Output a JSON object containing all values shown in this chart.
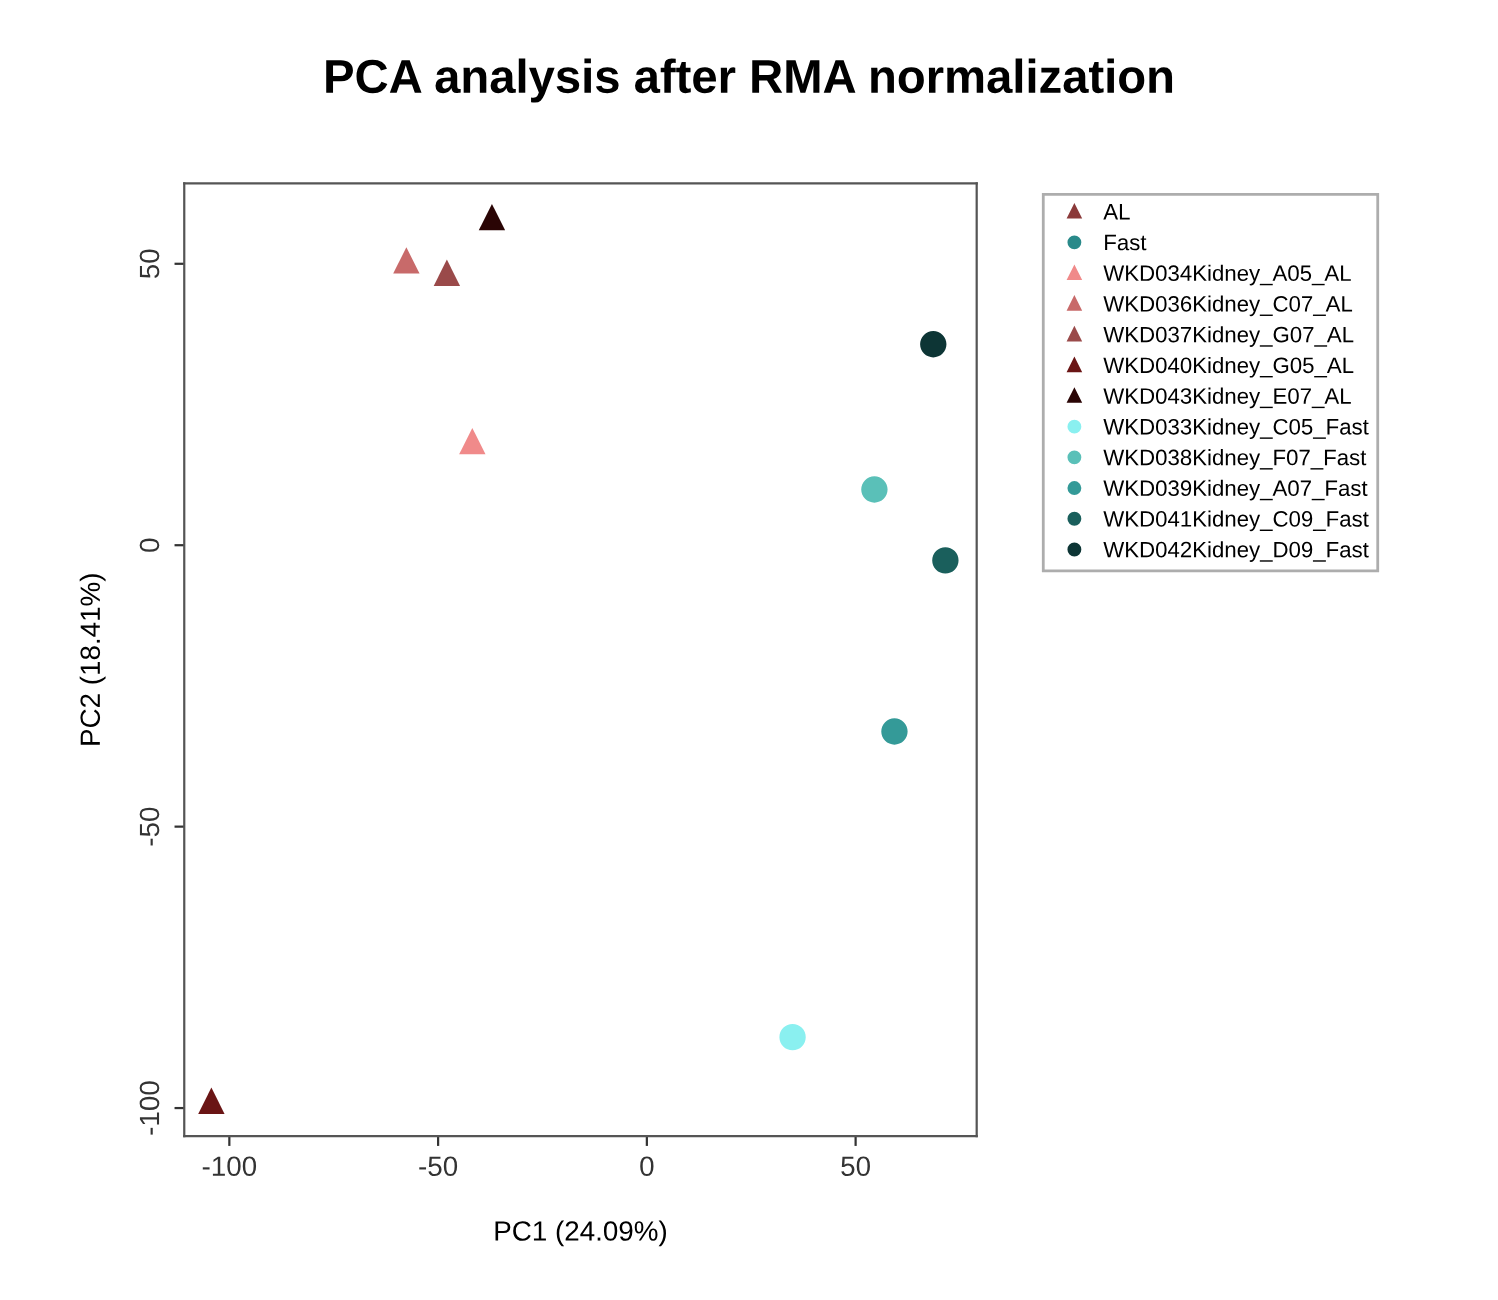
{
  "chart_data": {
    "type": "scatter",
    "title": "PCA analysis after RMA normalization",
    "xlabel": "PC1 (24.09%)",
    "ylabel": "PC2 (18.41%)",
    "xlim": [
      -110.8,
      79
    ],
    "ylim": [
      -105,
      64.3
    ],
    "xticks": [
      -100,
      -50,
      0,
      50
    ],
    "yticks": [
      -100,
      -50,
      0,
      50
    ],
    "grid": false,
    "legend": "right",
    "series": [
      {
        "name": "AL",
        "color": "#8b3a3a",
        "marker": "triangle",
        "x": [
          null
        ],
        "values": [
          null
        ]
      },
      {
        "name": "Fast",
        "color": "#2a8a8a",
        "marker": "circle",
        "x": [
          null
        ],
        "values": [
          null
        ]
      },
      {
        "name": "WKD034Kidney_A05_AL",
        "color": "#f08a8a",
        "marker": "triangle",
        "x": [
          -41.8
        ],
        "values": [
          18.5
        ]
      },
      {
        "name": "WKD036Kidney_C07_AL",
        "color": "#c86a6a",
        "marker": "triangle",
        "x": [
          -57.6
        ],
        "values": [
          50.6
        ]
      },
      {
        "name": "WKD037Kidney_G07_AL",
        "color": "#9a4a4a",
        "marker": "triangle",
        "x": [
          -47.9
        ],
        "values": [
          48.4
        ]
      },
      {
        "name": "WKD040Kidney_G05_AL",
        "color": "#6a1515",
        "marker": "triangle",
        "x": [
          -104.3
        ],
        "values": [
          -98.7
        ]
      },
      {
        "name": "WKD043Kidney_E07_AL",
        "color": "#2a0505",
        "marker": "triangle",
        "x": [
          -37.1
        ],
        "values": [
          58.3
        ]
      },
      {
        "name": "WKD033Kidney_C05_Fast",
        "color": "#8af0f0",
        "marker": "circle",
        "x": [
          34.9
        ],
        "values": [
          -87.4
        ]
      },
      {
        "name": "WKD038Kidney_F07_Fast",
        "color": "#5ac0b8",
        "marker": "circle",
        "x": [
          54.5
        ],
        "values": [
          9.9
        ]
      },
      {
        "name": "WKD039Kidney_A07_Fast",
        "color": "#349a98",
        "marker": "circle",
        "x": [
          59.3
        ],
        "values": [
          -33.1
        ]
      },
      {
        "name": "WKD041Kidney_C09_Fast",
        "color": "#1a5f5c",
        "marker": "circle",
        "x": [
          71.5
        ],
        "values": [
          -2.7
        ]
      },
      {
        "name": "WKD042Kidney_D09_Fast",
        "color": "#0d3535",
        "marker": "circle",
        "x": [
          68.6
        ],
        "values": [
          35.7
        ]
      }
    ]
  }
}
